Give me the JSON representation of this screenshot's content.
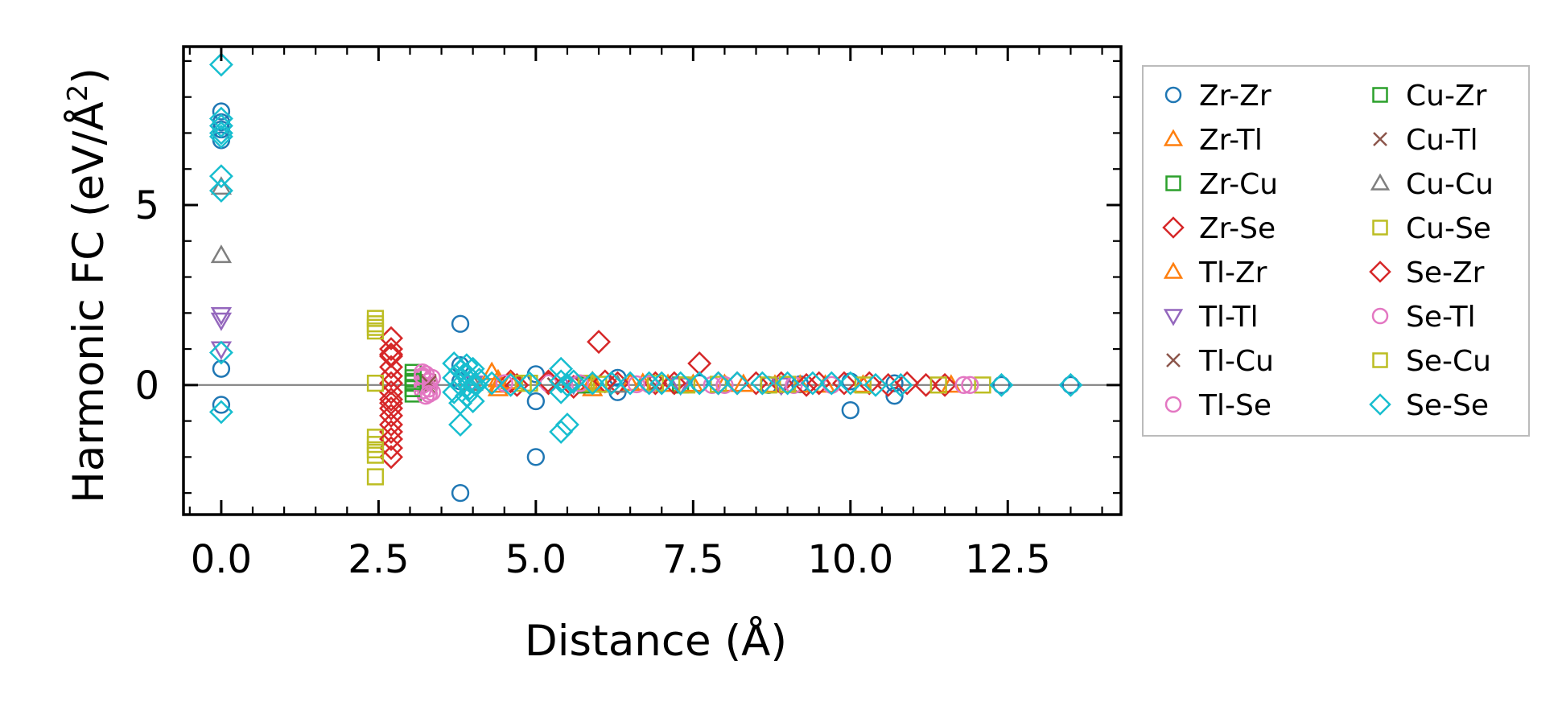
{
  "chart_data": {
    "type": "scatter",
    "title": "",
    "xlabel": "Distance (Å)",
    "ylabel_main": "Harmonic FC (eV/Å",
    "ylabel_sup": "2",
    "ylabel_close": ")",
    "xlim": [
      -0.6,
      14.3
    ],
    "ylim": [
      -3.6,
      9.4
    ],
    "xticks": [
      0.0,
      2.5,
      5.0,
      7.5,
      10.0,
      12.5
    ],
    "xtick_labels": [
      "0.0",
      "2.5",
      "5.0",
      "7.5",
      "10.0",
      "12.5"
    ],
    "yticks": [
      0,
      5
    ],
    "ytick_labels": [
      "0",
      "5"
    ],
    "reference_line_y": 0,
    "legend_position": "outside-right",
    "series": [
      {
        "name": "Zr-Zr",
        "marker": "circle",
        "color": "#1f77b4",
        "x": [
          0,
          0,
          0,
          0,
          0,
          0,
          3.8,
          3.8,
          3.8,
          3.8,
          5.0,
          5.0,
          5.0,
          6.3,
          6.3,
          7.6,
          8.7,
          9.2,
          10.0,
          10.0,
          10.7,
          10.7,
          12.4,
          13.5
        ],
        "y": [
          7.6,
          7.3,
          6.8,
          0.45,
          -0.55,
          7.1,
          1.7,
          -3.0,
          0.55,
          0.1,
          0.3,
          -0.45,
          -2.0,
          0.2,
          -0.2,
          0.05,
          0.0,
          0.02,
          -0.7,
          0.1,
          -0.3,
          0.05,
          0.0,
          0.0
        ]
      },
      {
        "name": "Zr-Tl",
        "marker": "triangle-up",
        "color": "#ff7f0e",
        "x": [
          4.3,
          4.4,
          4.4,
          5.9,
          5.9,
          6.5,
          7.1,
          8.0,
          8.8,
          9.6,
          11.6
        ],
        "y": [
          0.35,
          -0.1,
          0.15,
          0.1,
          -0.1,
          0.05,
          0.02,
          0.02,
          0.0,
          0.0,
          0.0
        ]
      },
      {
        "name": "Zr-Cu",
        "marker": "square",
        "color": "#2ca02c",
        "x": [
          3.05,
          3.05,
          3.05,
          3.05,
          3.05,
          5.8,
          7.3
        ],
        "y": [
          0.35,
          0.2,
          0.05,
          -0.1,
          -0.25,
          0.05,
          0.0
        ]
      },
      {
        "name": "Zr-Se",
        "marker": "diamond",
        "color": "#d62728",
        "x": [
          2.7,
          2.7,
          2.7,
          2.7,
          2.7,
          2.7,
          2.7,
          2.7,
          2.7,
          2.7,
          2.7,
          2.7,
          2.7,
          2.7,
          4.6,
          4.7,
          5.2,
          5.6,
          6.0,
          6.3,
          6.9,
          7.6,
          7.9,
          8.5,
          8.9,
          9.5,
          9.9,
          10.3,
          10.9,
          11.2,
          11.5
        ],
        "y": [
          1.3,
          1.0,
          0.85,
          0.5,
          0.25,
          0.05,
          -0.2,
          -0.4,
          -0.65,
          -0.85,
          -1.1,
          -1.3,
          -1.75,
          -2.0,
          0.1,
          0.0,
          0.05,
          -0.05,
          1.2,
          0.05,
          0.05,
          0.6,
          0.05,
          0.05,
          0.05,
          0.05,
          0.05,
          0.05,
          0.05,
          0.0,
          0.0
        ]
      },
      {
        "name": "Tl-Zr",
        "marker": "triangle-up",
        "color": "#ff7f0e",
        "x": [
          4.4,
          4.6,
          5.9,
          6.7,
          7.5,
          8.3,
          9.2,
          10.2
        ],
        "y": [
          0.0,
          0.1,
          0.05,
          0.05,
          0.02,
          0.02,
          0.0,
          0.0
        ]
      },
      {
        "name": "Tl-Tl",
        "marker": "triangle-down",
        "color": "#9467bd",
        "x": [
          0,
          0,
          0,
          4.0,
          5.6,
          7.3,
          8.9
        ],
        "y": [
          1.95,
          1.8,
          1.0,
          0.05,
          0.02,
          0.0,
          0.0
        ]
      },
      {
        "name": "Tl-Cu",
        "marker": "x",
        "color": "#8c564b",
        "x": [
          3.3,
          3.3,
          5.3,
          6.9
        ],
        "y": [
          0.1,
          -0.05,
          0.0,
          0.0
        ]
      },
      {
        "name": "Tl-Se",
        "marker": "circle",
        "color": "#e377c2",
        "x": [
          3.2,
          3.2,
          3.2,
          3.2,
          3.25,
          3.25,
          3.3,
          3.3,
          3.35,
          3.35,
          5.2,
          6.6,
          7.8,
          9.1,
          11.8
        ],
        "y": [
          0.35,
          0.2,
          0.0,
          -0.15,
          0.3,
          -0.3,
          0.1,
          -0.1,
          0.2,
          -0.2,
          0.05,
          0.02,
          0.0,
          0.0,
          0.0
        ]
      },
      {
        "name": "Cu-Zr",
        "marker": "square",
        "color": "#2ca02c",
        "x": [
          3.05,
          3.05,
          5.8
        ],
        "y": [
          0.1,
          -0.1,
          0.0
        ]
      },
      {
        "name": "Cu-Tl",
        "marker": "x",
        "color": "#8c564b",
        "x": [
          3.3,
          5.3
        ],
        "y": [
          0.05,
          0.0
        ]
      },
      {
        "name": "Cu-Cu",
        "marker": "triangle-up",
        "color": "#7f7f7f",
        "x": [
          0,
          0,
          4.0,
          6.3
        ],
        "y": [
          5.5,
          3.6,
          0.05,
          0.0
        ]
      },
      {
        "name": "Cu-Se",
        "marker": "square",
        "color": "#bcbd22",
        "x": [
          2.45,
          2.45,
          2.45,
          2.45,
          2.45,
          2.45,
          2.45,
          2.45,
          4.8,
          5.8,
          6.9,
          7.9,
          9.0,
          10.2,
          11.4,
          12.1
        ],
        "y": [
          1.85,
          1.7,
          1.5,
          0.05,
          -1.45,
          -1.65,
          -1.95,
          -2.55,
          0.05,
          0.05,
          0.05,
          0.02,
          0.02,
          0.0,
          0.0,
          0.0
        ]
      },
      {
        "name": "Se-Zr",
        "marker": "diamond",
        "color": "#d62728",
        "x": [
          2.7,
          2.7,
          2.7,
          5.2,
          6.1,
          7.2,
          8.2,
          9.3,
          10.6
        ],
        "y": [
          0.8,
          -0.5,
          -1.5,
          0.1,
          0.1,
          0.05,
          0.05,
          0.0,
          0.0
        ]
      },
      {
        "name": "Se-Tl",
        "marker": "circle",
        "color": "#e377c2",
        "x": [
          3.2,
          3.3,
          4.5,
          5.7,
          6.8,
          8.0,
          9.7,
          11.9
        ],
        "y": [
          0.25,
          -0.25,
          0.05,
          0.05,
          0.02,
          0.0,
          0.0,
          0.0
        ]
      },
      {
        "name": "Se-Cu",
        "marker": "square",
        "color": "#bcbd22",
        "x": [
          2.45,
          2.45,
          4.9,
          6.0,
          7.4,
          8.7
        ],
        "y": [
          1.6,
          -1.8,
          0.05,
          0.02,
          0.0,
          0.0
        ]
      },
      {
        "name": "Se-Se",
        "marker": "diamond",
        "color": "#17becf",
        "x": [
          0,
          0,
          0,
          0,
          0,
          0,
          0,
          0,
          0,
          3.7,
          3.7,
          3.7,
          3.8,
          3.8,
          3.8,
          3.8,
          3.9,
          3.9,
          3.9,
          3.95,
          3.95,
          4.0,
          4.0,
          4.05,
          4.1,
          4.3,
          4.6,
          4.9,
          5.4,
          5.4,
          5.4,
          5.4,
          5.5,
          5.5,
          5.6,
          5.9,
          6.2,
          6.5,
          6.8,
          7.0,
          7.3,
          7.6,
          7.9,
          8.2,
          8.6,
          9.0,
          9.4,
          9.7,
          10.0,
          10.4,
          10.8,
          12.4,
          13.5
        ],
        "y": [
          8.9,
          7.4,
          7.2,
          6.9,
          5.8,
          5.4,
          0.9,
          -0.75,
          7.0,
          0.6,
          0.2,
          -0.2,
          -1.1,
          0.4,
          0.0,
          -0.5,
          0.3,
          -0.3,
          0.55,
          0.1,
          -0.1,
          0.45,
          -0.45,
          0.0,
          0.15,
          0.05,
          0.0,
          0.05,
          0.45,
          0.1,
          -0.2,
          -1.3,
          -1.1,
          0.0,
          0.1,
          0.05,
          0.05,
          0.05,
          0.05,
          0.05,
          0.05,
          0.05,
          0.05,
          0.05,
          0.05,
          0.05,
          0.05,
          0.05,
          0.05,
          0.0,
          0.0,
          0.0,
          0.0
        ]
      }
    ]
  }
}
